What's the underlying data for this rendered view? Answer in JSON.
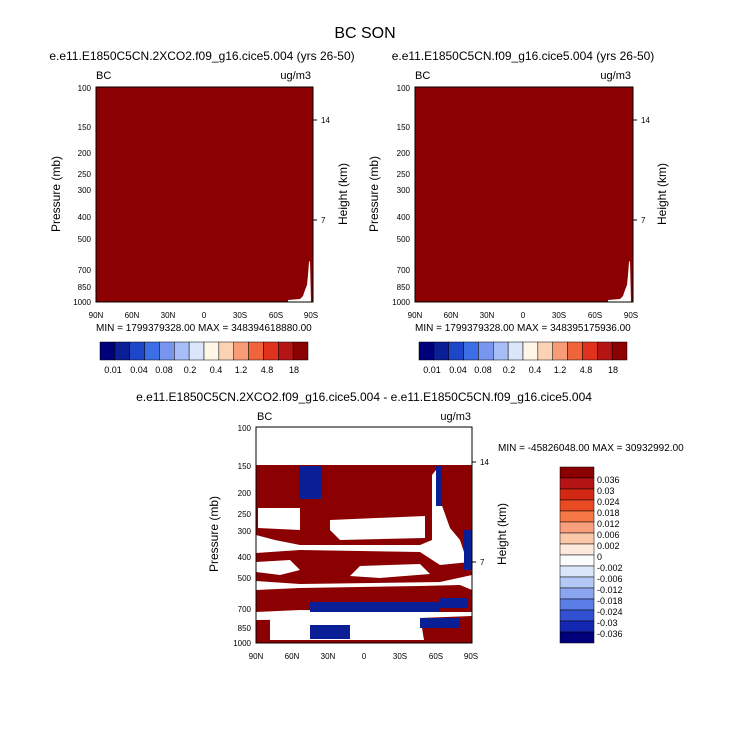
{
  "title": "BC SON",
  "colors": {
    "dark_red": "#8b0000",
    "dark_blue": "#0a1e96",
    "background": "#ffffff"
  },
  "chart_data": [
    {
      "type": "heatmap",
      "title": "e.e11.E1850C5CN.2XCO2.f09_g16.cice5.004 (yrs 26-50)",
      "left_label": "BC",
      "right_label": "ug/m3",
      "xlabel": "",
      "ylabel": "Pressure (mb)",
      "y2label": "Height (km)",
      "x_ticks": [
        "90N",
        "60N",
        "30N",
        "0",
        "30S",
        "60S",
        "90S"
      ],
      "y_ticks": [
        "100",
        "150",
        "200",
        "250",
        "300",
        "400",
        "500",
        "700",
        "850",
        "1000"
      ],
      "y2_ticks": [
        "14",
        "7"
      ],
      "minmax": "MIN = 1799379328.00   MAX = 348394618880.00",
      "colorbar": {
        "orientation": "horizontal",
        "tick_labels": [
          "0.01",
          "0.04",
          "0.08",
          "0.2",
          "0.4",
          "1.2",
          "4.8",
          "18"
        ],
        "colors": [
          "#00007a",
          "#0a1e96",
          "#1e46c8",
          "#3c6ee6",
          "#7896f0",
          "#a6bdf5",
          "#dbe6fa",
          "#fff6e8",
          "#fcd2b4",
          "#f89c78",
          "#f0643c",
          "#e1321e",
          "#b41414",
          "#8b0000"
        ]
      }
    },
    {
      "type": "heatmap",
      "title": "e.e11.E1850C5CN.f09_g16.cice5.004 (yrs 26-50)",
      "left_label": "BC",
      "right_label": "ug/m3",
      "xlabel": "",
      "ylabel": "Pressure (mb)",
      "y2label": "Height (km)",
      "x_ticks": [
        "90N",
        "60N",
        "30N",
        "0",
        "30S",
        "60S",
        "90S"
      ],
      "y_ticks": [
        "100",
        "150",
        "200",
        "250",
        "300",
        "400",
        "500",
        "700",
        "850",
        "1000"
      ],
      "y2_ticks": [
        "14",
        "7"
      ],
      "minmax": "MIN = 1799379328.00   MAX = 348395175936.00",
      "colorbar": {
        "orientation": "horizontal",
        "tick_labels": [
          "0.01",
          "0.04",
          "0.08",
          "0.2",
          "0.4",
          "1.2",
          "4.8",
          "18"
        ],
        "colors": [
          "#00007a",
          "#0a1e96",
          "#1e46c8",
          "#3c6ee6",
          "#7896f0",
          "#a6bdf5",
          "#dbe6fa",
          "#fff6e8",
          "#fcd2b4",
          "#f89c78",
          "#f0643c",
          "#e1321e",
          "#b41414",
          "#8b0000"
        ]
      }
    },
    {
      "type": "heatmap",
      "title": "e.e11.E1850C5CN.2XCO2.f09_g16.cice5.004 - e.e11.E1850C5CN.f09_g16.cice5.004",
      "left_label": "BC",
      "right_label": "ug/m3",
      "xlabel": "",
      "ylabel": "Pressure (mb)",
      "y2label": "Height (km)",
      "x_ticks": [
        "90N",
        "60N",
        "30N",
        "0",
        "30S",
        "60S",
        "90S"
      ],
      "y_ticks": [
        "100",
        "150",
        "200",
        "250",
        "300",
        "400",
        "500",
        "700",
        "850",
        "1000"
      ],
      "y2_ticks": [
        "14",
        "7"
      ],
      "minmax": "MIN = -45826048.00   MAX = 30932992.00",
      "colorbar": {
        "orientation": "vertical",
        "tick_labels": [
          "0.036",
          "0.03",
          "0.024",
          "0.018",
          "0.012",
          "0.006",
          "0.002",
          "0",
          "-0.002",
          "-0.006",
          "-0.012",
          "-0.018",
          "-0.024",
          "-0.03",
          "-0.036"
        ],
        "colors": [
          "#8b0000",
          "#b41414",
          "#d22814",
          "#eb4b23",
          "#f57846",
          "#f8a07d",
          "#fbc8aa",
          "#fdeadc",
          "#fbfbfb",
          "#dbe6fa",
          "#b4c8f5",
          "#8ca5f0",
          "#5a7de6",
          "#3250d2",
          "#1428b4",
          "#00007a"
        ]
      }
    }
  ]
}
